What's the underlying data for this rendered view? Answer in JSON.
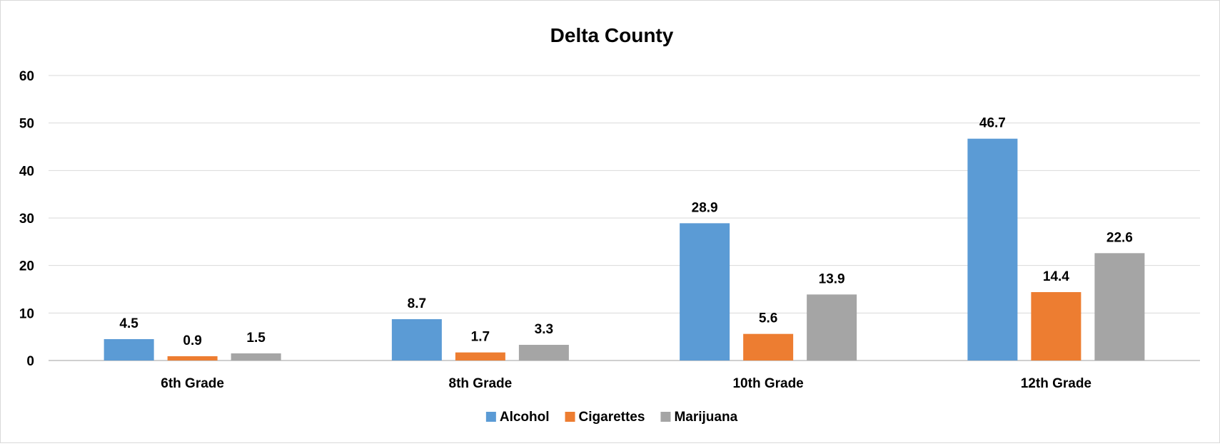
{
  "chart_data": {
    "type": "bar",
    "title": "Delta County",
    "categories": [
      "6th Grade",
      "8th Grade",
      "10th Grade",
      "12th Grade"
    ],
    "series": [
      {
        "name": "Alcohol",
        "color": "#5b9bd5",
        "values": [
          4.5,
          8.7,
          28.9,
          46.7
        ]
      },
      {
        "name": "Cigarettes",
        "color": "#ed7d31",
        "values": [
          0.9,
          1.7,
          5.6,
          14.4
        ]
      },
      {
        "name": "Marijuana",
        "color": "#a5a5a5",
        "values": [
          1.5,
          3.3,
          13.9,
          22.6
        ]
      }
    ],
    "ylim": [
      0,
      60
    ],
    "yticks": [
      0,
      10,
      20,
      30,
      40,
      50,
      60
    ],
    "grid": true,
    "legend": "bottom",
    "data_labels": true
  }
}
